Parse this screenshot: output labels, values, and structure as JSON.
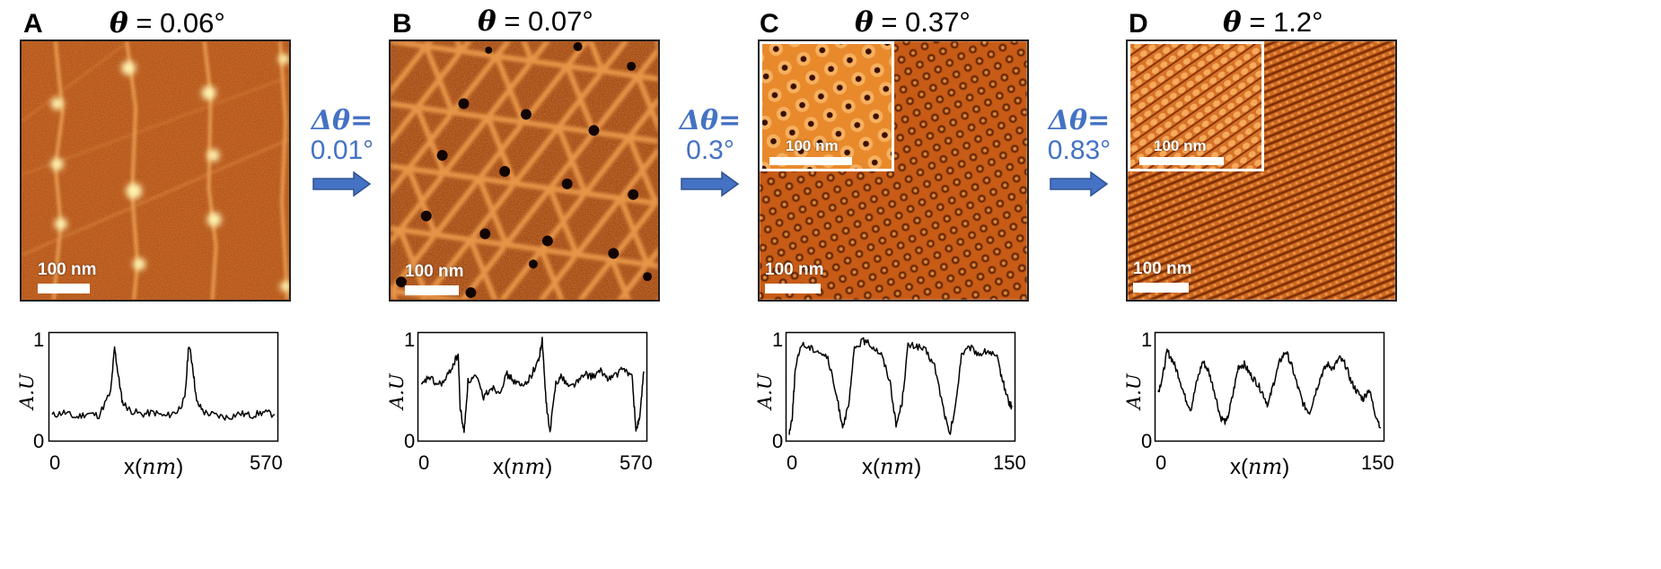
{
  "panels": [
    {
      "letter": "A",
      "theta_symbol": "θ",
      "theta_value": "= 0.06°",
      "scale_label": "100 nm",
      "has_inset": false,
      "inset_scale_label": ""
    },
    {
      "letter": "B",
      "theta_symbol": "θ",
      "theta_value": "= 0.07°",
      "scale_label": "100 nm",
      "has_inset": false,
      "inset_scale_label": ""
    },
    {
      "letter": "C",
      "theta_symbol": "θ",
      "theta_value": "= 0.37°",
      "scale_label": "100 nm",
      "has_inset": true,
      "inset_scale_label": "100 nm"
    },
    {
      "letter": "D",
      "theta_symbol": "θ",
      "theta_value": "= 1.2°",
      "scale_label": "100 nm",
      "has_inset": true,
      "inset_scale_label": "100 nm"
    }
  ],
  "arrows": [
    {
      "delta_label": "Δθ=",
      "delta_value": "0.01°"
    },
    {
      "delta_label": "Δθ=",
      "delta_value": "0.3°"
    },
    {
      "delta_label": "Δθ=",
      "delta_value": "0.83°"
    }
  ],
  "colors": {
    "arrow": "#4472c4",
    "colormap_dark": "#4a1800",
    "colormap_mid": "#c0561a",
    "colormap_light": "#ffe9a0"
  },
  "chart_data": [
    {
      "type": "line",
      "title": "",
      "xlabel_prefix": "x(",
      "xlabel_unit": "nm",
      "xlabel_suffix": ")",
      "ylabel": "A.U",
      "xlim": [
        0,
        570
      ],
      "ylim": [
        0,
        1
      ],
      "x_tick_labels": [
        "0",
        "570"
      ],
      "y_tick_labels": [
        "1",
        "0"
      ],
      "series": [
        {
          "x": [
            0,
            30,
            60,
            90,
            120,
            150,
            160,
            170,
            180,
            200,
            230,
            260,
            290,
            320,
            340,
            350,
            360,
            370,
            390,
            420,
            450,
            480,
            510,
            540,
            570
          ],
          "y": [
            0.22,
            0.25,
            0.2,
            0.24,
            0.22,
            0.45,
            0.88,
            0.6,
            0.35,
            0.27,
            0.23,
            0.25,
            0.21,
            0.26,
            0.38,
            0.92,
            0.7,
            0.35,
            0.25,
            0.22,
            0.2,
            0.24,
            0.22,
            0.25,
            0.23
          ]
        }
      ]
    },
    {
      "type": "line",
      "title": "",
      "xlabel_prefix": "x(",
      "xlabel_unit": "nm",
      "xlabel_suffix": ")",
      "ylabel": "A.U",
      "xlim": [
        0,
        570
      ],
      "ylim": [
        0,
        1
      ],
      "x_tick_labels": [
        "0",
        "570"
      ],
      "y_tick_labels": [
        "1",
        "0"
      ],
      "series": [
        {
          "x": [
            0,
            20,
            40,
            60,
            80,
            95,
            100,
            110,
            120,
            140,
            160,
            180,
            200,
            220,
            240,
            260,
            280,
            300,
            310,
            320,
            330,
            345,
            360,
            380,
            400,
            420,
            440,
            460,
            480,
            500,
            520,
            540,
            550,
            560,
            570
          ],
          "y": [
            0.5,
            0.6,
            0.52,
            0.55,
            0.7,
            0.82,
            0.3,
            0.05,
            0.55,
            0.6,
            0.4,
            0.5,
            0.45,
            0.62,
            0.55,
            0.5,
            0.6,
            0.75,
            0.95,
            0.35,
            0.05,
            0.55,
            0.6,
            0.5,
            0.55,
            0.62,
            0.6,
            0.65,
            0.58,
            0.62,
            0.68,
            0.6,
            0.08,
            0.2,
            0.65
          ]
        }
      ]
    },
    {
      "type": "line",
      "title": "",
      "xlabel_prefix": "x(",
      "xlabel_unit": "nm",
      "xlabel_suffix": ")",
      "ylabel": "A.U",
      "xlim": [
        0,
        150
      ],
      "ylim": [
        0,
        1
      ],
      "x_tick_labels": [
        "0",
        "150"
      ],
      "y_tick_labels": [
        "1",
        "0"
      ],
      "series": [
        {
          "x": [
            0,
            2,
            4,
            8,
            14,
            20,
            26,
            32,
            36,
            40,
            44,
            50,
            56,
            62,
            68,
            72,
            76,
            80,
            86,
            92,
            98,
            104,
            108,
            112,
            116,
            122,
            128,
            134,
            140,
            144,
            148,
            150
          ],
          "y": [
            0.05,
            0.2,
            0.65,
            0.92,
            0.88,
            0.85,
            0.78,
            0.4,
            0.12,
            0.3,
            0.88,
            0.95,
            0.9,
            0.82,
            0.55,
            0.12,
            0.35,
            0.9,
            0.9,
            0.85,
            0.7,
            0.28,
            0.02,
            0.3,
            0.82,
            0.88,
            0.82,
            0.85,
            0.78,
            0.55,
            0.35,
            0.3
          ]
        }
      ]
    },
    {
      "type": "line",
      "title": "",
      "xlabel_prefix": "x(",
      "xlabel_unit": "nm",
      "xlabel_suffix": ")",
      "ylabel": "A.U",
      "xlim": [
        0,
        150
      ],
      "ylim": [
        0,
        1
      ],
      "x_tick_labels": [
        "0",
        "150"
      ],
      "y_tick_labels": [
        "1",
        "0"
      ],
      "series": [
        {
          "x": [
            0,
            3,
            6,
            10,
            14,
            18,
            22,
            26,
            30,
            34,
            38,
            42,
            46,
            50,
            54,
            58,
            62,
            66,
            70,
            74,
            78,
            82,
            86,
            90,
            94,
            98,
            102,
            106,
            110,
            114,
            118,
            122,
            126,
            130,
            134,
            138,
            142,
            146,
            150
          ],
          "y": [
            0.45,
            0.6,
            0.85,
            0.75,
            0.6,
            0.4,
            0.28,
            0.55,
            0.75,
            0.65,
            0.45,
            0.2,
            0.15,
            0.4,
            0.7,
            0.72,
            0.62,
            0.55,
            0.45,
            0.32,
            0.55,
            0.75,
            0.85,
            0.7,
            0.5,
            0.32,
            0.25,
            0.45,
            0.62,
            0.72,
            0.68,
            0.78,
            0.72,
            0.55,
            0.45,
            0.38,
            0.48,
            0.25,
            0.1
          ]
        }
      ]
    }
  ]
}
